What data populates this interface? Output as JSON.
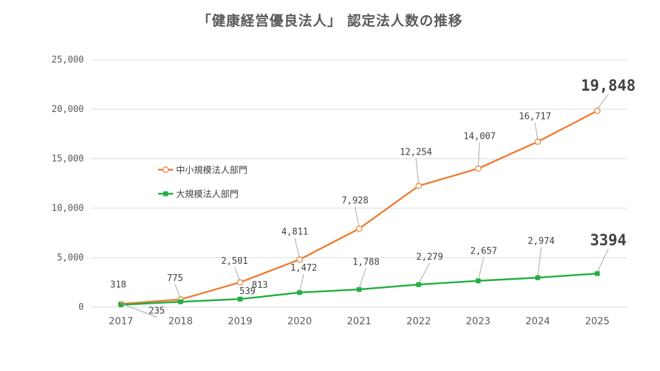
{
  "chart_data": {
    "type": "line",
    "title": "「健康経営優良法人」 認定法人数の推移",
    "categories": [
      "2017",
      "2018",
      "2019",
      "2020",
      "2021",
      "2022",
      "2023",
      "2024",
      "2025"
    ],
    "y_ticks": [
      "0",
      "5,000",
      "10,000",
      "15,000",
      "20,000",
      "25,000"
    ],
    "ylim": [
      0,
      25000
    ],
    "grid": true,
    "legend_position": "left-middle",
    "series": [
      {
        "name": "中小規模法人部門",
        "color": "#ED7D31",
        "marker": "open-circle",
        "values": [
          318,
          775,
          2501,
          4811,
          7928,
          12254,
          14007,
          16717,
          19848
        ],
        "labels": [
          "318",
          "775",
          "2,501",
          "4,811",
          "7,928",
          "12,254",
          "14,007",
          "16,717",
          "19,848"
        ]
      },
      {
        "name": "大規模法人部門",
        "color": "#1FAF3F",
        "marker": "square",
        "values": [
          235,
          539,
          813,
          1472,
          1788,
          2279,
          2657,
          2974,
          3394
        ],
        "labels": [
          "235",
          "539",
          "813",
          "1,472",
          "1,788",
          "2,279",
          "2,657",
          "2,974",
          "3394"
        ]
      }
    ]
  }
}
